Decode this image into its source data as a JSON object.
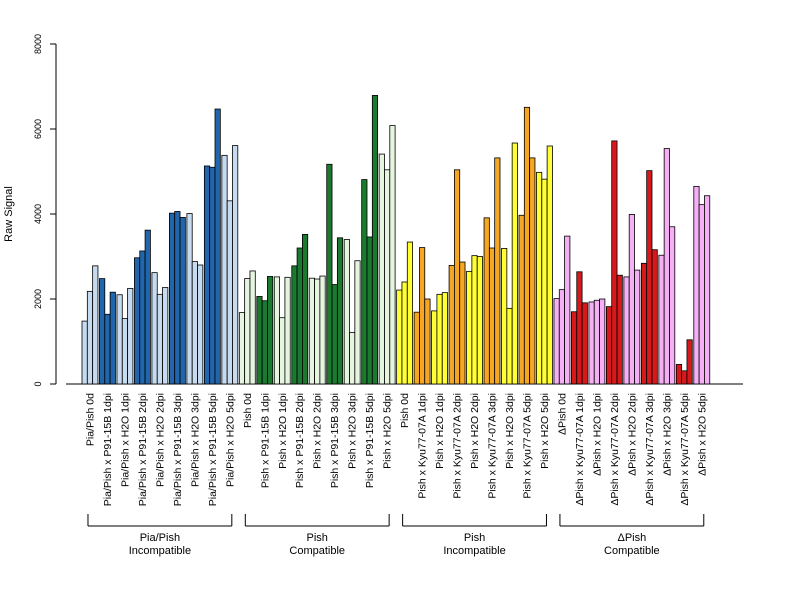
{
  "chart_data": {
    "type": "bar",
    "ylabel": "Raw Signal",
    "ylim": [
      0,
      8000
    ],
    "yticks": [
      0,
      2000,
      4000,
      6000,
      8000
    ],
    "grid": false,
    "categories": [
      "Pia/Pish 0d",
      "Pia/Pish x P91-15B 1dpi",
      "Pia/Pish x H2O 1dpi",
      "Pia/Pish x P91-15B 2dpi",
      "Pia/Pish x H2O 2dpi",
      "Pia/Pish x P91-15B 3dpi",
      "Pia/Pish x H2O 3dpi",
      "Pia/Pish x P91-15B 5dpi",
      "Pia/Pish x H2O 5dpi",
      "Pish 0d",
      "Pish x P91-15B 1dpi",
      "Pish x H2O 1dpi",
      "Pish x P91-15B 2dpi",
      "Pish x H2O 2dpi",
      "Pish x P91-15B 3dpi",
      "Pish x H2O 3dpi",
      "Pish x P91-15B 5dpi",
      "Pish x H2O 5dpi",
      "Pish 0d",
      "Pish x Kyu77-07A 1dpi",
      "Pish x H2O 1dpi",
      "Pish x Kyu77-07A 2dpi",
      "Pish x H2O 2dpi",
      "Pish x Kyu77-07A 3dpi",
      "Pish x H2O 3dpi",
      "Pish x Kyu77-07A 5dpi",
      "Pish x H2O 5dpi",
      "ΔPish 0d",
      "ΔPish x Kyu77-07A 1dpi",
      "ΔPish x H2O 1dpi",
      "ΔPish x Kyu77-07A 2dpi",
      "ΔPish x H2O 2dpi",
      "ΔPish x Kyu77-07A 3dpi",
      "ΔPish x H2O 3dpi",
      "ΔPish x Kyu77-07A 5dpi",
      "ΔPish x H2O 5dpi"
    ],
    "values": [
      [
        1480,
        2180,
        2780
      ],
      [
        2480,
        1640,
        2160
      ],
      [
        2100,
        1540,
        2250
      ],
      [
        2970,
        3130,
        3620
      ],
      [
        2620,
        2110,
        2270
      ],
      [
        4020,
        4060,
        3920
      ],
      [
        4010,
        2880,
        2800
      ],
      [
        5130,
        5100,
        6470
      ],
      [
        5380,
        4310,
        5610
      ],
      [
        1680,
        2480,
        2660
      ],
      [
        2060,
        1960,
        2530
      ],
      [
        2520,
        1560,
        2510
      ],
      [
        2780,
        3200,
        3520
      ],
      [
        2490,
        2470,
        2540
      ],
      [
        5170,
        2340,
        3440
      ],
      [
        3400,
        1210,
        2900
      ],
      [
        4810,
        3460,
        6790
      ],
      [
        5410,
        5040,
        6080
      ],
      [
        2210,
        2400,
        3340
      ],
      [
        1690,
        3210,
        2000
      ],
      [
        1720,
        2110,
        2150
      ],
      [
        2790,
        5040,
        2870
      ],
      [
        2650,
        3020,
        3000
      ],
      [
        3910,
        3200,
        5320
      ],
      [
        3190,
        1780,
        5670
      ],
      [
        3970,
        6510,
        5320
      ],
      [
        4980,
        4820,
        5600
      ],
      [
        2010,
        2220,
        3480
      ],
      [
        1700,
        2640,
        1910
      ],
      [
        1930,
        1970,
        2000
      ],
      [
        1820,
        5720,
        2560
      ],
      [
        2520,
        3990,
        2680
      ],
      [
        2840,
        5020,
        3160
      ],
      [
        3030,
        5540,
        3700
      ],
      [
        460,
        310,
        1040
      ],
      [
        4650,
        4220,
        4430
      ]
    ],
    "bar_colors": [
      "#c6dbef",
      "#2166ac",
      "#c6dbef",
      "#2166ac",
      "#c6dbef",
      "#2166ac",
      "#c6dbef",
      "#2166ac",
      "#c6dbef",
      "#e5f5e0",
      "#1b7a2f",
      "#e5f5e0",
      "#1b7a2f",
      "#e5f5e0",
      "#1b7a2f",
      "#e5f5e0",
      "#1b7a2f",
      "#e5f5e0",
      "#ffff33",
      "#f5a623",
      "#ffff33",
      "#f5a623",
      "#ffff33",
      "#f5a623",
      "#ffff33",
      "#f5a623",
      "#ffff33",
      "#f5b0f5",
      "#d7191c",
      "#f5b0f5",
      "#d7191c",
      "#f5b0f5",
      "#d7191c",
      "#f5b0f5",
      "#d7191c",
      "#f5b0f5"
    ],
    "groups": [
      {
        "line1": "Pia/Pish",
        "line2": "Incompatible"
      },
      {
        "line1": "Pish",
        "line2": "Compatible"
      },
      {
        "line1": "Pish",
        "line2": "Incompatible"
      },
      {
        "line1": "ΔPish",
        "line2": "Compatible"
      }
    ]
  }
}
